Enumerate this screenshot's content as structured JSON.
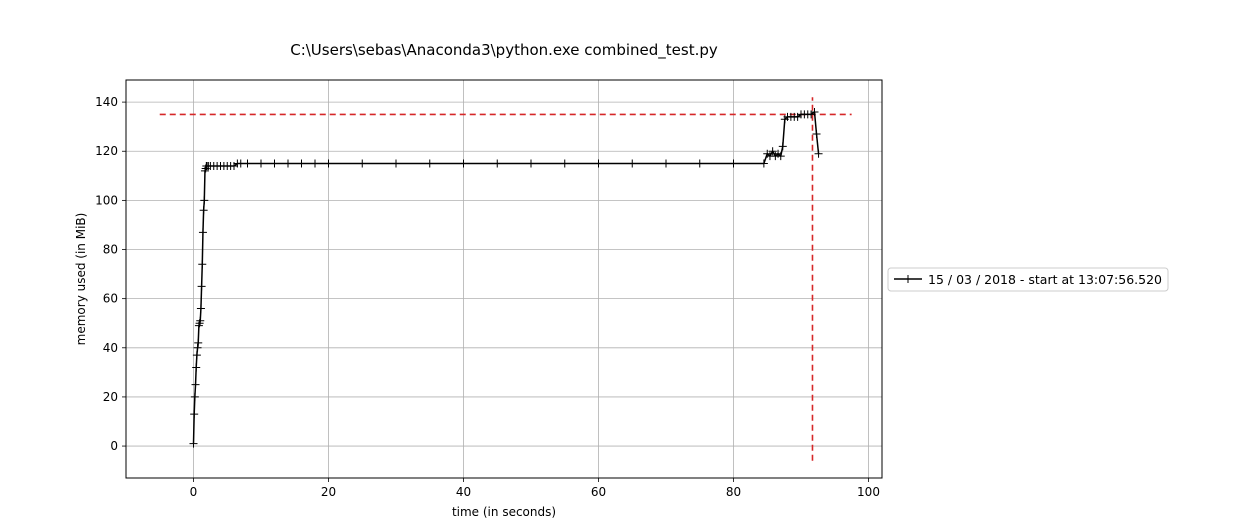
{
  "chart_data": {
    "type": "line",
    "title": "C:\\Users\\sebas\\Anaconda3\\python.exe combined_test.py",
    "xlabel": "time (in seconds)",
    "ylabel": "memory used (in MiB)",
    "xlim": [
      -10,
      102
    ],
    "ylim": [
      -13,
      149
    ],
    "xticks": [
      0,
      20,
      40,
      60,
      80,
      100
    ],
    "yticks": [
      0,
      20,
      40,
      60,
      80,
      100,
      120,
      140
    ],
    "grid": true,
    "legend_position": "outside-right",
    "series": [
      {
        "name": "15 / 03 / 2018 - start at 13:07:56.520",
        "color": "#000000",
        "marker": "+",
        "x": [
          0.0,
          0.1,
          0.2,
          0.3,
          0.4,
          0.5,
          0.6,
          0.7,
          0.8,
          0.9,
          1.0,
          1.1,
          1.2,
          1.3,
          1.4,
          1.5,
          1.6,
          1.7,
          1.8,
          1.9,
          2.0,
          2.2,
          2.5,
          3.0,
          3.5,
          4.0,
          4.5,
          5.0,
          5.5,
          6.0,
          6.5,
          7,
          8,
          10,
          12,
          14,
          16,
          18,
          20,
          25,
          30,
          35,
          40,
          45,
          50,
          55,
          60,
          65,
          70,
          75,
          80,
          84.5,
          85.0,
          85.4,
          85.8,
          86.2,
          86.6,
          87.0,
          87.3,
          87.6,
          88.0,
          88.5,
          89.0,
          89.5,
          90.0,
          90.5,
          91.0,
          91.5,
          92.0,
          92.3,
          92.6
        ],
        "y": [
          1,
          13,
          20,
          25,
          32,
          37,
          40,
          42,
          49,
          50,
          51,
          56,
          65,
          74,
          87,
          96,
          100,
          112,
          113,
          114,
          114,
          114,
          114,
          114,
          114,
          114,
          114,
          114,
          114,
          114,
          115,
          115,
          115,
          115,
          115,
          115,
          115,
          115,
          115,
          115,
          115,
          115,
          115,
          115,
          115,
          115,
          115,
          115,
          115,
          115,
          115,
          115,
          119,
          118,
          120,
          118,
          119,
          118,
          122,
          133,
          134,
          134,
          134,
          134,
          135,
          135,
          135,
          135,
          136,
          127,
          119
        ]
      }
    ],
    "reference_lines": [
      {
        "orientation": "horizontal",
        "y": 135,
        "x_range": [
          -5,
          97.5
        ],
        "color": "#d62728",
        "style": "dashed"
      },
      {
        "orientation": "vertical",
        "x": 91.7,
        "y_range": [
          -6,
          142
        ],
        "color": "#d62728",
        "style": "dashed"
      }
    ]
  }
}
